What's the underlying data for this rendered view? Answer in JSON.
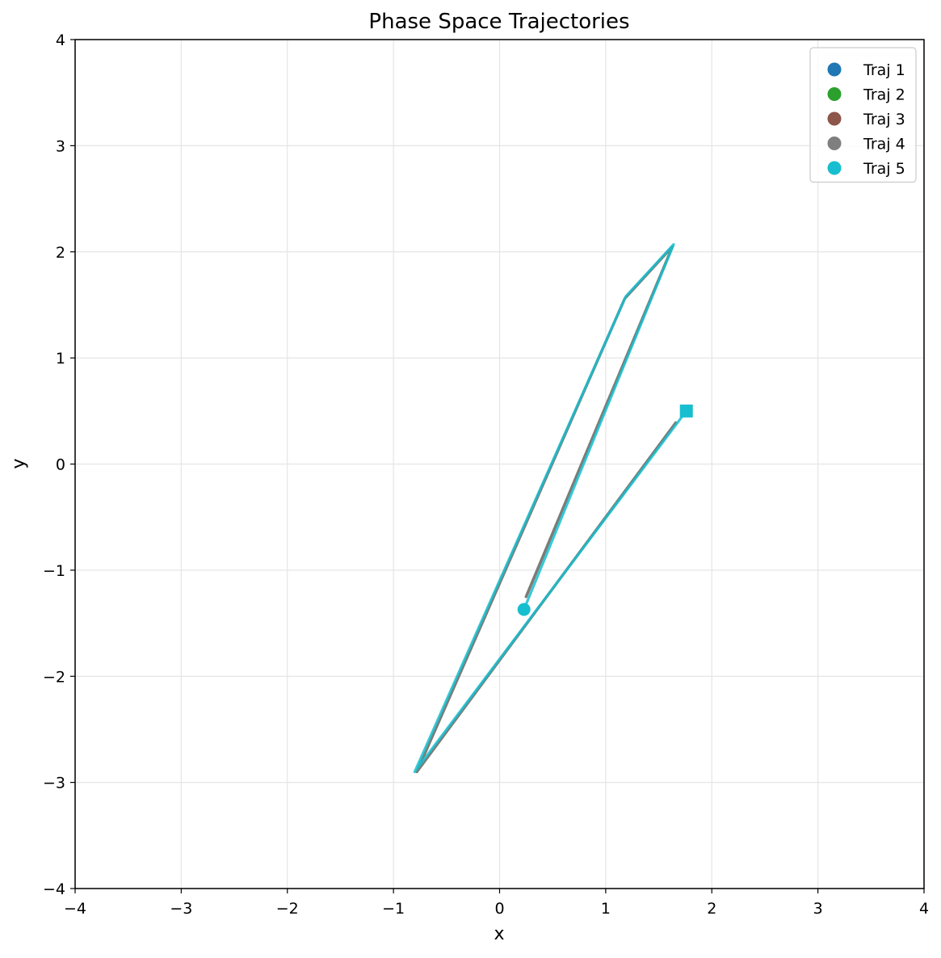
{
  "chart_data": {
    "type": "line",
    "title": "Phase Space Trajectories",
    "xlabel": "x",
    "ylabel": "y",
    "xlim": [
      -4,
      4
    ],
    "ylim": [
      -4,
      4
    ],
    "xticks": [
      -4,
      -3,
      -2,
      -1,
      0,
      1,
      2,
      3,
      4
    ],
    "yticks": [
      -4,
      -3,
      -2,
      -1,
      0,
      1,
      2,
      3,
      4
    ],
    "xtick_labels": [
      "−4",
      "−3",
      "−2",
      "−1",
      "0",
      "1",
      "2",
      "3",
      "4"
    ],
    "ytick_labels": [
      "−4",
      "−3",
      "−2",
      "−1",
      "0",
      "1",
      "2",
      "3",
      "4"
    ],
    "grid": true,
    "legend_position": "top-right",
    "start_marker": "circle",
    "end_marker": "square",
    "series": [
      {
        "name": "Traj 1",
        "color": "#1f77b4",
        "x": [
          0.25,
          1.63,
          1.18,
          -0.78,
          1.66
        ],
        "y": [
          -1.25,
          2.05,
          1.56,
          -2.9,
          0.39
        ]
      },
      {
        "name": "Traj 2",
        "color": "#2ca02c",
        "x": [
          0.25,
          1.63,
          1.18,
          -0.78,
          1.66
        ],
        "y": [
          -1.25,
          2.05,
          1.56,
          -2.9,
          0.39
        ]
      },
      {
        "name": "Traj 3",
        "color": "#8c564b",
        "x": [
          0.25,
          1.63,
          1.18,
          -0.78,
          1.66
        ],
        "y": [
          -1.25,
          2.05,
          1.56,
          -2.9,
          0.39
        ]
      },
      {
        "name": "Traj 4",
        "color": "#7f7f7f",
        "x": [
          0.25,
          1.63,
          1.18,
          -0.78,
          1.66
        ],
        "y": [
          -1.25,
          2.05,
          1.56,
          -2.9,
          0.39
        ]
      },
      {
        "name": "Traj 5",
        "color": "#17becf",
        "x": [
          0.23,
          1.64,
          1.19,
          -0.8,
          1.76
        ],
        "y": [
          -1.37,
          2.07,
          1.58,
          -2.9,
          0.5
        ]
      }
    ]
  }
}
